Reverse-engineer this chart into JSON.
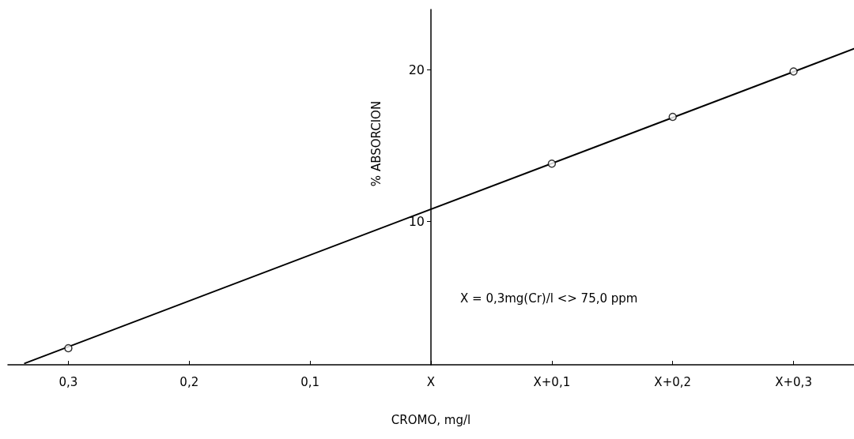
{
  "chart_data": {
    "type": "scatter",
    "xlabel": "CROMO, mg/l",
    "ylabel": "% ABSORCION",
    "x": [
      -0.3,
      0.1,
      0.2,
      0.3
    ],
    "series": [
      {
        "color": "#000000",
        "values": [
          1.6,
          13.8,
          16.9,
          19.9
        ],
        "marker": "circle"
      },
      {
        "type": "line",
        "color": "#000000",
        "x": [
          -0.336,
          0.35
        ],
        "values": [
          0.6,
          21.4
        ],
        "marker": "none",
        "line_style": "solid"
      }
    ],
    "xlim": [
      -0.35,
      0.35
    ],
    "xticks": [
      {
        "value": -0.3,
        "label": "0,3"
      },
      {
        "value": -0.2,
        "label": "0,2"
      },
      {
        "value": -0.1,
        "label": "0,1"
      },
      {
        "value": 0,
        "label": "X"
      },
      {
        "value": 0.1,
        "label": "X+0,1"
      },
      {
        "value": 0.2,
        "label": "X+0,2"
      },
      {
        "value": 0.3,
        "label": "X+0,3"
      }
    ],
    "ylim": [
      0.5,
      24
    ],
    "yticks": [
      10,
      20
    ],
    "annotations": [
      "X = 0,3mg(Cr)/l <> 75,0 ppm"
    ],
    "grid": false
  }
}
